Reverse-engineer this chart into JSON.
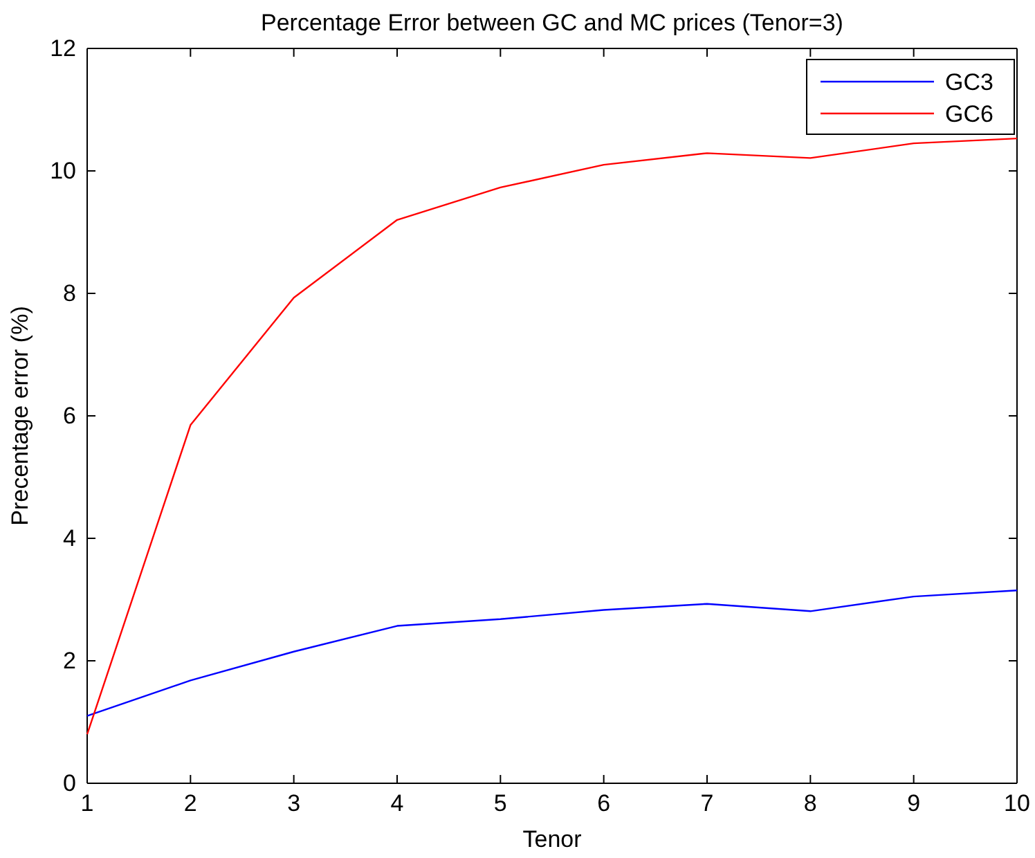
{
  "chart_data": {
    "type": "line",
    "title": "Percentage Error between GC and MC prices (Tenor=3)",
    "xlabel": "Tenor",
    "ylabel": "Precentage error (%)",
    "x": [
      1,
      2,
      3,
      4,
      5,
      6,
      7,
      8,
      9,
      10
    ],
    "series": [
      {
        "name": "GC3",
        "color": "#0000ff",
        "values": [
          1.1,
          1.68,
          2.15,
          2.57,
          2.68,
          2.83,
          2.93,
          2.81,
          3.05,
          3.15
        ]
      },
      {
        "name": "GC6",
        "color": "#ff0000",
        "values": [
          0.8,
          5.85,
          7.93,
          9.2,
          9.73,
          10.1,
          10.29,
          10.21,
          10.45,
          10.53
        ]
      }
    ],
    "xlim": [
      1,
      10
    ],
    "xticks": [
      1,
      2,
      3,
      4,
      5,
      6,
      7,
      8,
      9,
      10
    ],
    "ylim": [
      0,
      12
    ],
    "yticks": [
      0,
      2,
      4,
      6,
      8,
      10,
      12
    ],
    "legend": "top right",
    "grid": false,
    "marker": "none",
    "line_style": "solid"
  }
}
